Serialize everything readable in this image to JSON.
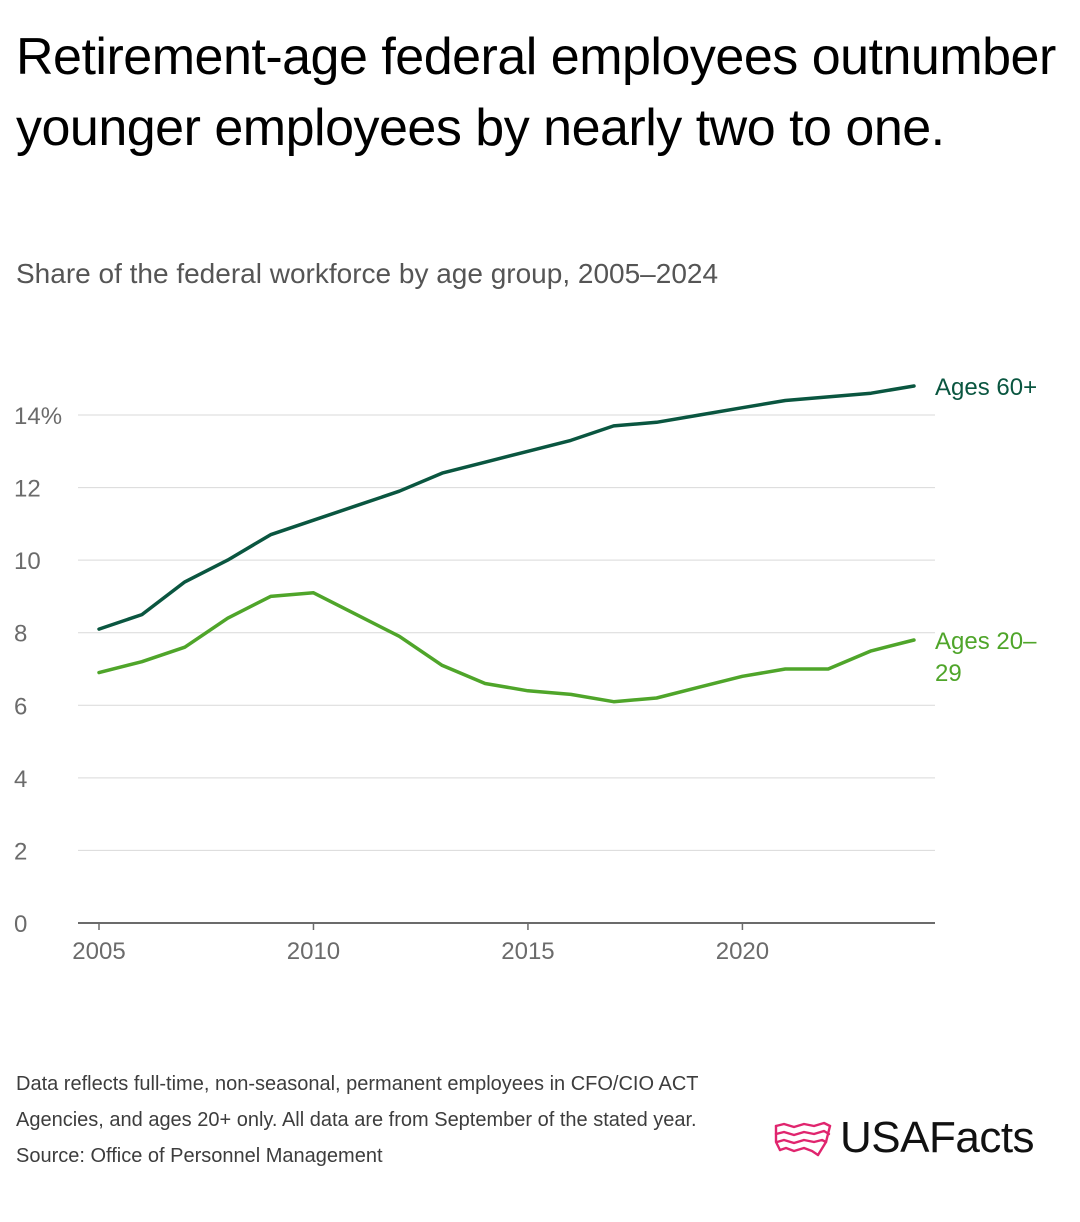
{
  "header": {
    "title": "Retirement-age federal employees outnumber younger employees by nearly two to one.",
    "subtitle": "Share of the federal workforce by age group, 2005–2024"
  },
  "colors": {
    "ages_60_plus": "#0a5640",
    "ages_20_29": "#4fa52a",
    "gridline": "#d9d9d9",
    "axis": "#6b6b6b",
    "logo_accent": "#e0256e"
  },
  "chart_data": {
    "type": "line",
    "title": "Retirement-age federal employees outnumber younger employees by nearly two to one.",
    "subtitle": "Share of the federal workforce by age group, 2005–2024",
    "xlabel": "",
    "ylabel": "",
    "x": [
      2005,
      2006,
      2007,
      2008,
      2009,
      2010,
      2011,
      2012,
      2013,
      2014,
      2015,
      2016,
      2017,
      2018,
      2019,
      2020,
      2021,
      2022,
      2023,
      2024
    ],
    "xlim": [
      2005,
      2024
    ],
    "ylim": [
      0,
      14.8
    ],
    "grid": true,
    "x_ticks": [
      {
        "value": 2005,
        "label": "2005"
      },
      {
        "value": 2010,
        "label": "2010"
      },
      {
        "value": 2015,
        "label": "2015"
      },
      {
        "value": 2020,
        "label": "2020"
      }
    ],
    "y_ticks": [
      {
        "value": 0,
        "label": "0"
      },
      {
        "value": 2,
        "label": "2"
      },
      {
        "value": 4,
        "label": "4"
      },
      {
        "value": 6,
        "label": "6"
      },
      {
        "value": 8,
        "label": "8"
      },
      {
        "value": 10,
        "label": "10"
      },
      {
        "value": 12,
        "label": "12"
      },
      {
        "value": 14,
        "label": "14%"
      }
    ],
    "series": [
      {
        "name": "Ages 60+",
        "label_lines": [
          "Ages 60+"
        ],
        "color": "#0a5640",
        "values": [
          8.1,
          8.5,
          9.4,
          10.0,
          10.7,
          11.1,
          11.5,
          11.9,
          12.4,
          12.7,
          13.0,
          13.3,
          13.7,
          13.8,
          14.0,
          14.2,
          14.4,
          14.5,
          14.6,
          14.8
        ]
      },
      {
        "name": "Ages 20–29",
        "label_lines": [
          "Ages 20–",
          "29"
        ],
        "color": "#4fa52a",
        "values": [
          6.9,
          7.2,
          7.6,
          8.4,
          9.0,
          9.1,
          8.5,
          7.9,
          7.1,
          6.6,
          6.4,
          6.3,
          6.1,
          6.2,
          6.5,
          6.8,
          7.0,
          7.0,
          7.5,
          7.8
        ]
      }
    ]
  },
  "footer": {
    "note": "Data reflects full-time, non-seasonal, permanent employees in CFO/CIO ACT Agencies, and ages 20+ only. All data are from September of the stated year.",
    "source": "Source: Office of Personnel Management",
    "logo_text": "USAFacts"
  }
}
